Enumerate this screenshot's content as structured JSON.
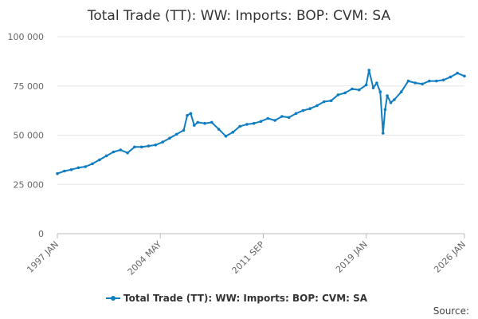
{
  "chart_data": {
    "type": "line",
    "title": "Total Trade (TT): WW: Imports: BOP: CVM: SA",
    "xlabel": "",
    "ylabel": "",
    "ylim": [
      0,
      100000
    ],
    "yticks": [
      0,
      25000,
      50000,
      75000,
      100000
    ],
    "ytick_labels": [
      "0",
      "25 000",
      "50 000",
      "75 000",
      "100 000"
    ],
    "xlim": [
      1997.0,
      2026.0
    ],
    "xticks": [
      1997.0,
      2004.33,
      2011.67,
      2019.0,
      2026.0
    ],
    "xtick_labels": [
      "1997 JAN",
      "2004 MAY",
      "2011 SEP",
      "2019 JAN",
      "2026 JAN"
    ],
    "grid": true,
    "legend_position": "bottom",
    "series": [
      {
        "name": "Total Trade (TT): WW: Imports: BOP: CVM: SA",
        "color": "#0f7dc2",
        "x": [
          1997.0,
          1997.5,
          1998.0,
          1998.5,
          1999.0,
          1999.5,
          2000.0,
          2000.5,
          2001.0,
          2001.5,
          2002.0,
          2002.5,
          2003.0,
          2003.5,
          2004.0,
          2004.5,
          2005.0,
          2005.5,
          2006.0,
          2006.25,
          2006.5,
          2006.75,
          2007.0,
          2007.5,
          2008.0,
          2008.5,
          2009.0,
          2009.5,
          2010.0,
          2010.5,
          2011.0,
          2011.5,
          2012.0,
          2012.5,
          2013.0,
          2013.5,
          2014.0,
          2014.5,
          2015.0,
          2015.5,
          2016.0,
          2016.5,
          2017.0,
          2017.5,
          2018.0,
          2018.5,
          2019.0,
          2019.2,
          2019.5,
          2019.75,
          2020.0,
          2020.2,
          2020.35,
          2020.5,
          2020.75,
          2021.0,
          2021.5,
          2022.0,
          2022.5,
          2023.0,
          2023.5,
          2024.0,
          2024.5,
          2025.0,
          2025.5,
          2026.0
        ],
        "values": [
          30500,
          31800,
          32500,
          33500,
          34000,
          35500,
          37500,
          39500,
          41500,
          42500,
          41000,
          44000,
          44000,
          44500,
          45000,
          46500,
          48500,
          50500,
          52500,
          60000,
          61000,
          55000,
          56500,
          56000,
          56500,
          53000,
          49500,
          51500,
          54500,
          55500,
          56000,
          57000,
          58500,
          57500,
          59500,
          59000,
          61000,
          62500,
          63500,
          65000,
          67000,
          67500,
          70500,
          71500,
          73500,
          73000,
          75500,
          83000,
          74000,
          76500,
          72000,
          51000,
          63000,
          70000,
          66500,
          68000,
          72000,
          77500,
          76500,
          76000,
          77500,
          77500,
          78000,
          79500,
          81500,
          80000
        ]
      }
    ]
  },
  "legend": {
    "label": "Total Trade (TT): WW: Imports: BOP: CVM: SA"
  },
  "source": {
    "label": "Source:"
  }
}
